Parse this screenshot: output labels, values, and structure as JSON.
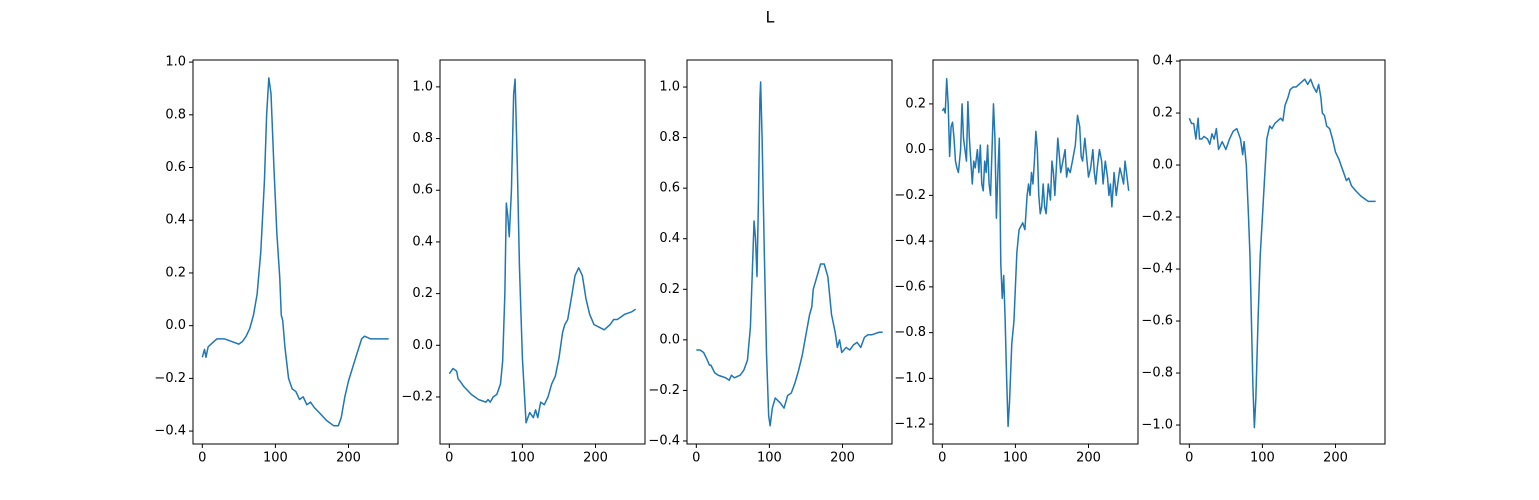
{
  "title": "L",
  "chart_data": [
    {
      "type": "line",
      "color": "#1f77b4",
      "xlim": [
        -12.75,
        267.75
      ],
      "ylim": [
        -0.449,
        1.008
      ],
      "xticks": [
        0,
        100,
        200
      ],
      "yticks": [
        {
          "value": -0.4,
          "label": "−0.4"
        },
        {
          "value": -0.2,
          "label": "−0.2"
        },
        {
          "value": 0,
          "label": "0.0"
        },
        0.2,
        0.4,
        0.6,
        0.8,
        {
          "value": 1,
          "label": "1.0"
        }
      ],
      "x": [
        0,
        3,
        5,
        8,
        12,
        20,
        30,
        40,
        50,
        55,
        60,
        65,
        70,
        75,
        80,
        85,
        88,
        91,
        94,
        98,
        102,
        106,
        108,
        110,
        113,
        118,
        123,
        128,
        133,
        138,
        143,
        148,
        153,
        160,
        170,
        180,
        186,
        190,
        195,
        200,
        210,
        218,
        222,
        230,
        240,
        250,
        255
      ],
      "values": [
        -0.12,
        -0.09,
        -0.12,
        -0.08,
        -0.07,
        -0.05,
        -0.05,
        -0.06,
        -0.07,
        -0.06,
        -0.04,
        -0.01,
        0.04,
        0.12,
        0.28,
        0.55,
        0.8,
        0.94,
        0.88,
        0.6,
        0.35,
        0.18,
        0.04,
        0.02,
        -0.08,
        -0.2,
        -0.24,
        -0.25,
        -0.28,
        -0.27,
        -0.3,
        -0.29,
        -0.31,
        -0.33,
        -0.36,
        -0.38,
        -0.38,
        -0.35,
        -0.27,
        -0.21,
        -0.12,
        -0.05,
        -0.04,
        -0.05,
        -0.05,
        -0.05,
        -0.05
      ]
    },
    {
      "type": "line",
      "color": "#1f77b4",
      "xlim": [
        -12.75,
        267.75
      ],
      "ylim": [
        -0.382,
        1.104
      ],
      "xticks": [
        0,
        100,
        200
      ],
      "yticks": [
        {
          "value": -0.2,
          "label": "−0.2"
        },
        {
          "value": 0,
          "label": "0.0"
        },
        0.2,
        0.4,
        0.6,
        0.8,
        {
          "value": 1,
          "label": "1.0"
        }
      ],
      "x": [
        0,
        5,
        10,
        12,
        15,
        20,
        30,
        40,
        50,
        53,
        56,
        60,
        65,
        70,
        73,
        76,
        78,
        80,
        82,
        85,
        88,
        90,
        93,
        96,
        100,
        105,
        110,
        115,
        118,
        121,
        125,
        130,
        135,
        140,
        145,
        150,
        155,
        158,
        162,
        168,
        172,
        177,
        182,
        187,
        192,
        198,
        205,
        212,
        220,
        225,
        230,
        235,
        240,
        250,
        255
      ],
      "values": [
        -0.11,
        -0.09,
        -0.1,
        -0.13,
        -0.14,
        -0.16,
        -0.19,
        -0.21,
        -0.22,
        -0.21,
        -0.22,
        -0.2,
        -0.19,
        -0.15,
        -0.06,
        0.2,
        0.55,
        0.5,
        0.42,
        0.6,
        0.97,
        1.03,
        0.7,
        0.3,
        -0.05,
        -0.3,
        -0.26,
        -0.28,
        -0.25,
        -0.28,
        -0.22,
        -0.23,
        -0.2,
        -0.15,
        -0.12,
        -0.05,
        0.05,
        0.08,
        0.1,
        0.2,
        0.27,
        0.3,
        0.27,
        0.18,
        0.12,
        0.08,
        0.07,
        0.06,
        0.08,
        0.1,
        0.1,
        0.11,
        0.12,
        0.13,
        0.14
      ]
    },
    {
      "type": "line",
      "color": "#1f77b4",
      "xlim": [
        -12.75,
        267.75
      ],
      "ylim": [
        -0.412,
        1.107
      ],
      "xticks": [
        0,
        100,
        200
      ],
      "yticks": [
        {
          "value": -0.4,
          "label": "−0.4"
        },
        {
          "value": -0.2,
          "label": "−0.2"
        },
        {
          "value": 0,
          "label": "0.0"
        },
        0.2,
        0.4,
        0.6,
        0.8,
        {
          "value": 1,
          "label": "1.0"
        }
      ],
      "x": [
        0,
        5,
        10,
        15,
        18,
        20,
        25,
        30,
        40,
        45,
        48,
        52,
        60,
        65,
        70,
        74,
        77,
        79,
        81,
        83,
        85,
        87,
        88,
        90,
        93,
        96,
        99,
        101,
        104,
        108,
        115,
        120,
        125,
        130,
        135,
        140,
        145,
        150,
        155,
        158,
        160,
        165,
        170,
        175,
        180,
        185,
        190,
        193,
        196,
        199,
        205,
        210,
        215,
        220,
        225,
        230,
        235,
        240,
        250,
        255
      ],
      "values": [
        -0.04,
        -0.04,
        -0.05,
        -0.08,
        -0.1,
        -0.1,
        -0.13,
        -0.14,
        -0.15,
        -0.16,
        -0.14,
        -0.15,
        -0.14,
        -0.12,
        -0.08,
        0.05,
        0.3,
        0.47,
        0.4,
        0.25,
        0.55,
        0.95,
        1.02,
        0.8,
        0.35,
        -0.05,
        -0.3,
        -0.34,
        -0.27,
        -0.23,
        -0.25,
        -0.27,
        -0.22,
        -0.21,
        -0.17,
        -0.12,
        -0.06,
        0.02,
        0.1,
        0.13,
        0.2,
        0.25,
        0.3,
        0.3,
        0.25,
        0.1,
        0.03,
        -0.03,
        0,
        -0.05,
        -0.03,
        -0.04,
        -0.02,
        -0.01,
        -0.03,
        0.01,
        0.02,
        0.02,
        0.03,
        0.03
      ]
    },
    {
      "type": "line",
      "color": "#1f77b4",
      "xlim": [
        -12.75,
        267.75
      ],
      "ylim": [
        -1.287,
        0.392
      ],
      "xticks": [
        0,
        100,
        200
      ],
      "yticks": [
        {
          "value": -1.2,
          "label": "−1.2"
        },
        {
          "value": -1,
          "label": "−1.0"
        },
        {
          "value": -0.8,
          "label": "−0.8"
        },
        {
          "value": -0.6,
          "label": "−0.6"
        },
        {
          "value": -0.4,
          "label": "−0.4"
        },
        {
          "value": -0.2,
          "label": "−0.2"
        },
        {
          "value": 0,
          "label": "0.0"
        },
        0.2
      ],
      "x": [
        0,
        2,
        4,
        6,
        8,
        10,
        12,
        14,
        16,
        18,
        20,
        22,
        25,
        27,
        29,
        31,
        33,
        35,
        37,
        39,
        41,
        43,
        45,
        48,
        50,
        52,
        54,
        56,
        58,
        60,
        62,
        64,
        66,
        68,
        70,
        72,
        74,
        76,
        78,
        80,
        82,
        84,
        86,
        88,
        90,
        92,
        95,
        98,
        100,
        102,
        105,
        110,
        113,
        116,
        118,
        120,
        122,
        124,
        126,
        128,
        130,
        132,
        134,
        136,
        138,
        140,
        142,
        145,
        148,
        150,
        152,
        154,
        156,
        158,
        160,
        162,
        165,
        168,
        170,
        172,
        175,
        178,
        182,
        185,
        188,
        190,
        192,
        195,
        198,
        200,
        203,
        206,
        208,
        210,
        212,
        215,
        218,
        220,
        223,
        226,
        228,
        230,
        232,
        235,
        238,
        240,
        243,
        246,
        248,
        250,
        252,
        255
      ],
      "values": [
        0.17,
        0.18,
        0.16,
        0.31,
        0.2,
        -0.03,
        0.1,
        0.12,
        0.05,
        -0.05,
        -0.08,
        -0.1,
        0,
        0.2,
        0.05,
        0,
        -0.05,
        0.21,
        0.05,
        -0.05,
        -0.15,
        -0.05,
        -0.08,
        0,
        -0.1,
        0.02,
        -0.15,
        -0.18,
        -0.05,
        -0.1,
        0.02,
        -0.15,
        -0.2,
        0,
        0.2,
        0.05,
        -0.3,
        -0.1,
        0.05,
        -0.5,
        -0.65,
        -0.55,
        -0.75,
        -1,
        -1.21,
        -1.1,
        -0.85,
        -0.75,
        -0.6,
        -0.45,
        -0.35,
        -0.32,
        -0.35,
        -0.2,
        -0.15,
        -0.2,
        -0.1,
        -0.15,
        -0.05,
        0.08,
        0,
        -0.2,
        -0.28,
        -0.25,
        -0.15,
        -0.25,
        -0.28,
        -0.15,
        -0.22,
        -0.05,
        -0.1,
        -0.2,
        -0.08,
        0.05,
        -0.02,
        -0.1,
        -0.05,
        0,
        -0.12,
        -0.08,
        -0.1,
        -0.05,
        0.02,
        0.15,
        0.1,
        -0.03,
        -0.05,
        0.05,
        -0.05,
        -0.12,
        -0.08,
        0,
        -0.1,
        -0.15,
        -0.08,
        0,
        -0.05,
        -0.15,
        -0.05,
        -0.12,
        -0.2,
        -0.15,
        -0.25,
        -0.1,
        -0.2,
        -0.15,
        -0.08,
        -0.12,
        -0.15,
        -0.05,
        -0.1,
        -0.18
      ]
    },
    {
      "type": "line",
      "color": "#1f77b4",
      "xlim": [
        -12.75,
        267.75
      ],
      "ylim": [
        -1.073,
        0.404
      ],
      "xticks": [
        0,
        100,
        200
      ],
      "yticks": [
        {
          "value": -1,
          "label": "−1.0"
        },
        {
          "value": -0.8,
          "label": "−0.8"
        },
        {
          "value": -0.6,
          "label": "−0.6"
        },
        {
          "value": -0.4,
          "label": "−0.4"
        },
        {
          "value": -0.2,
          "label": "−0.2"
        },
        {
          "value": 0,
          "label": "0.0"
        },
        0.2,
        0.4
      ],
      "x": [
        0,
        3,
        6,
        9,
        12,
        14,
        17,
        20,
        25,
        28,
        31,
        34,
        37,
        40,
        45,
        50,
        55,
        60,
        65,
        70,
        73,
        75,
        78,
        81,
        83,
        85,
        87,
        89,
        91,
        94,
        97,
        100,
        103,
        106,
        110,
        113,
        117,
        121,
        125,
        128,
        131,
        135,
        138,
        142,
        146,
        150,
        154,
        158,
        162,
        166,
        170,
        174,
        177,
        180,
        182,
        185,
        188,
        192,
        196,
        200,
        205,
        210,
        215,
        218,
        222,
        228,
        235,
        240,
        245,
        250,
        255
      ],
      "values": [
        0.18,
        0.16,
        0.16,
        0.1,
        0.18,
        0.1,
        0.1,
        0.11,
        0.1,
        0.08,
        0.12,
        0.1,
        0.14,
        0.06,
        0.09,
        0.06,
        0.1,
        0.13,
        0.14,
        0.1,
        0.04,
        0.09,
        0,
        -0.2,
        -0.35,
        -0.6,
        -0.85,
        -1.01,
        -0.9,
        -0.6,
        -0.35,
        -0.2,
        -0.05,
        0.1,
        0.15,
        0.14,
        0.16,
        0.17,
        0.18,
        0.17,
        0.23,
        0.26,
        0.29,
        0.3,
        0.3,
        0.31,
        0.32,
        0.33,
        0.31,
        0.33,
        0.3,
        0.28,
        0.31,
        0.26,
        0.2,
        0.19,
        0.15,
        0.14,
        0.1,
        0.05,
        0.02,
        -0.02,
        -0.06,
        -0.05,
        -0.08,
        -0.1,
        -0.12,
        -0.13,
        -0.14,
        -0.14,
        -0.14
      ]
    }
  ]
}
